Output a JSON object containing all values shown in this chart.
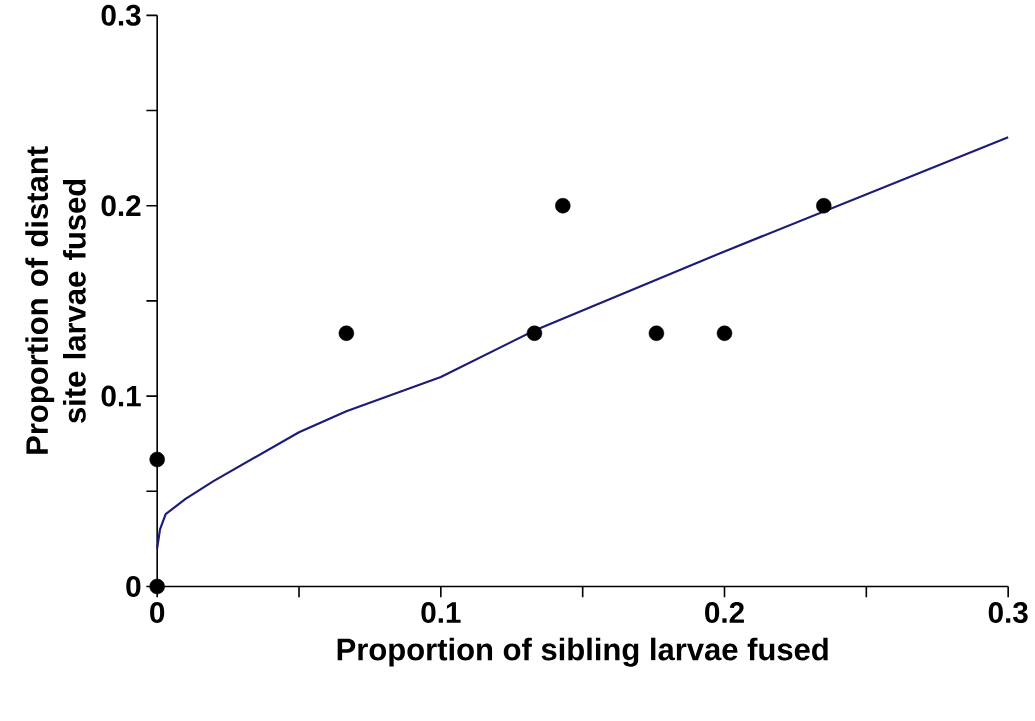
{
  "chart_data": {
    "type": "scatter",
    "xlabel": "Proportion of sibling larvae fused",
    "ylabel": "Proportion of distant site larvae fused",
    "xlim": [
      0,
      0.3
    ],
    "ylim": [
      0,
      0.3
    ],
    "xticks": [
      0,
      {
        "value": 0.05,
        "label": null
      },
      0.1,
      {
        "value": 0.15,
        "label": null
      },
      0.2,
      {
        "value": 0.25,
        "label": null
      },
      0.3
    ],
    "yticks": [
      0,
      {
        "value": 0.05,
        "label": null
      },
      0.1,
      {
        "value": 0.15,
        "label": null
      },
      0.2,
      {
        "value": 0.25,
        "label": null
      },
      0.3
    ],
    "grid": false,
    "x": [
      0,
      0,
      0.0667,
      0.133,
      0.143,
      0.176,
      0.2,
      0.235
    ],
    "series": [
      {
        "color": "#000000",
        "marker": "circle",
        "values": [
          0,
          0.0667,
          0.133,
          0.133,
          0.2,
          0.133,
          0.133,
          0.2
        ]
      },
      {
        "type": "line",
        "color": "#1c1c78",
        "marker": "none",
        "x": [
          0,
          0.001,
          0.003,
          0.01,
          0.02,
          0.05,
          0.0667,
          0.1,
          0.133,
          0.2,
          0.26,
          0.3
        ],
        "values": [
          0.02,
          0.03,
          0.038,
          0.046,
          0.0555,
          0.081,
          0.092,
          0.11,
          0.1345,
          0.176,
          0.212,
          0.236
        ]
      }
    ]
  }
}
